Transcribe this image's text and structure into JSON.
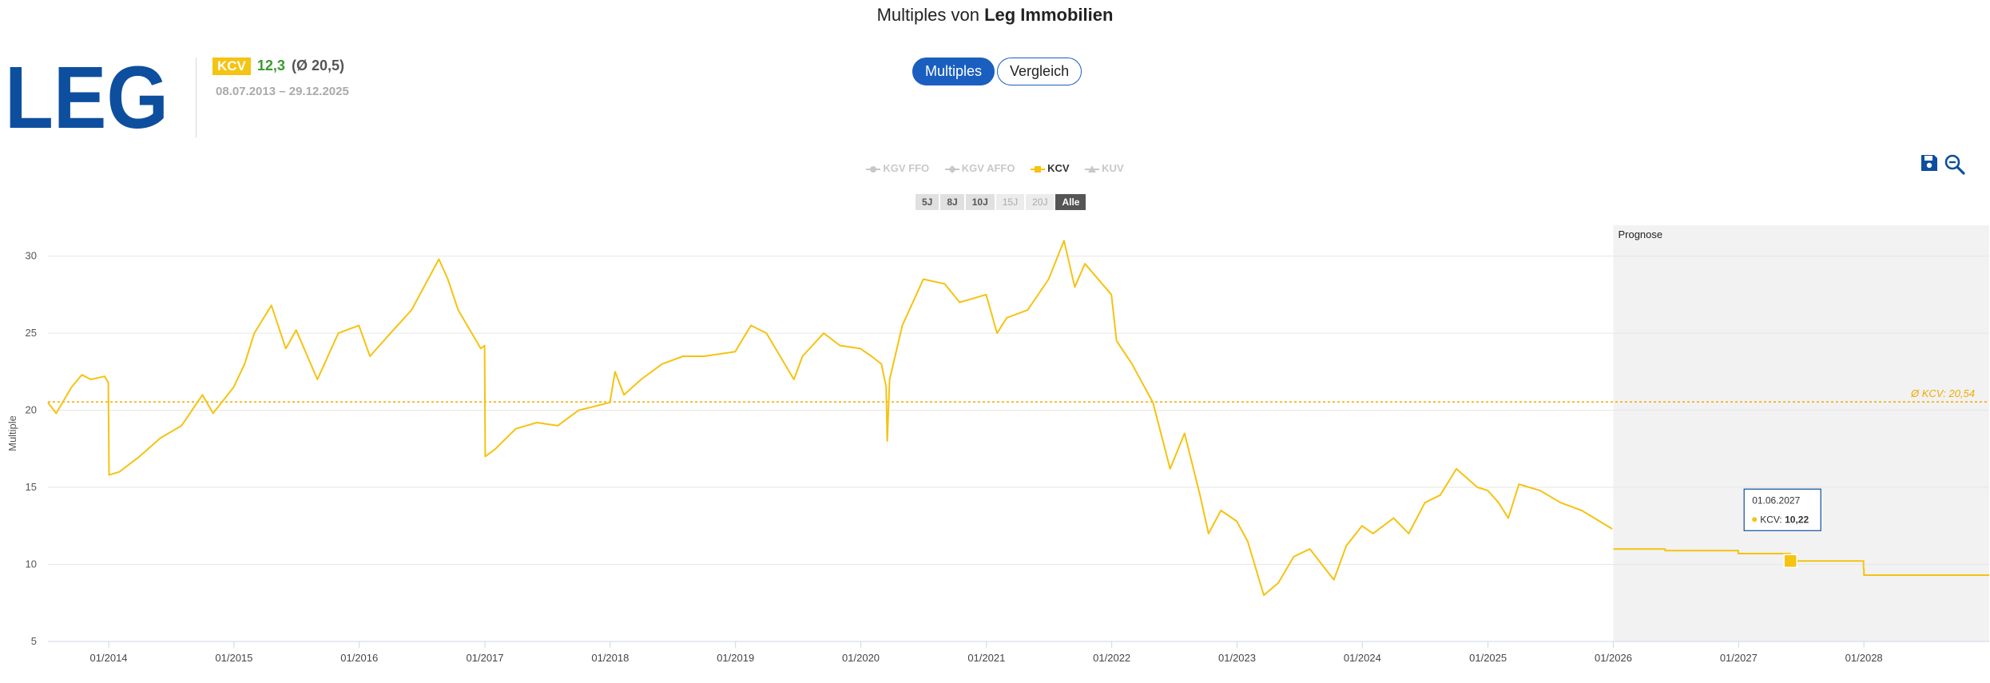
{
  "page": {
    "title_prefix": "Multiples von",
    "title_company": "Leg Immobilien"
  },
  "logo": {
    "text": "LEG"
  },
  "summary": {
    "metric_badge": "KCV",
    "current_value": "12,3",
    "average_text": "(Ø 20,5)",
    "date_range": "08.07.2013 – 29.12.2025"
  },
  "view_toggle": {
    "options": [
      "Multiples",
      "Vergleich"
    ],
    "active": "Multiples"
  },
  "legend": {
    "items": [
      {
        "label": "KGV FFO",
        "active": false,
        "marker": "circle"
      },
      {
        "label": "KGV AFFO",
        "active": false,
        "marker": "diamond"
      },
      {
        "label": "KCV",
        "active": true,
        "marker": "square"
      },
      {
        "label": "KUV",
        "active": false,
        "marker": "triangle"
      }
    ]
  },
  "range_buttons": {
    "items": [
      {
        "label": "5J",
        "state": "enabled"
      },
      {
        "label": "8J",
        "state": "enabled"
      },
      {
        "label": "10J",
        "state": "enabled"
      },
      {
        "label": "15J",
        "state": "disabled"
      },
      {
        "label": "20J",
        "state": "disabled"
      },
      {
        "label": "Alle",
        "state": "selected"
      }
    ]
  },
  "toolbar": {
    "icons": [
      "save-icon",
      "zoom-out-icon"
    ]
  },
  "tooltip": {
    "date": "01.06.2027",
    "series": "KCV",
    "value": "10,22"
  },
  "colors": {
    "series": "#f5c311",
    "accent": "#1a5fbf",
    "avg_line": "#f2a900",
    "forecast_bg": "#f2f2f2",
    "positive": "#3a9a2e"
  },
  "chart_data": {
    "type": "line",
    "ylabel": "Multiple",
    "ylim": [
      5,
      32
    ],
    "yticks": [
      5,
      10,
      15,
      20,
      25,
      30
    ],
    "x_range": [
      "2013-07-08",
      "2028-12-31"
    ],
    "x_ticks": [
      "01/2014",
      "01/2015",
      "01/2016",
      "01/2017",
      "01/2018",
      "01/2019",
      "01/2020",
      "01/2021",
      "01/2022",
      "01/2023",
      "01/2024",
      "01/2025",
      "01/2026",
      "01/2027",
      "01/2028"
    ],
    "forecast_band": {
      "start": "2026-01-01",
      "label": "Prognose"
    },
    "average_line": {
      "value": 20.54,
      "label": "Ø KCV: 20,54"
    },
    "series": [
      {
        "name": "KCV",
        "points": [
          [
            "2013-07-08",
            20.5
          ],
          [
            "2013-08-01",
            19.8
          ],
          [
            "2013-09-15",
            21.5
          ],
          [
            "2013-10-15",
            22.3
          ],
          [
            "2013-11-10",
            22.0
          ],
          [
            "2013-12-20",
            22.2
          ],
          [
            "2013-12-31",
            21.8
          ],
          [
            "2014-01-02",
            15.8
          ],
          [
            "2014-02-01",
            16.0
          ],
          [
            "2014-04-01",
            17.0
          ],
          [
            "2014-06-01",
            18.2
          ],
          [
            "2014-08-01",
            19.0
          ],
          [
            "2014-10-01",
            21.0
          ],
          [
            "2014-11-01",
            19.8
          ],
          [
            "2014-12-31",
            21.5
          ],
          [
            "2015-02-01",
            23.0
          ],
          [
            "2015-03-01",
            25.0
          ],
          [
            "2015-04-20",
            26.8
          ],
          [
            "2015-06-01",
            24.0
          ],
          [
            "2015-07-01",
            25.2
          ],
          [
            "2015-09-01",
            22.0
          ],
          [
            "2015-11-01",
            25.0
          ],
          [
            "2015-12-31",
            25.5
          ],
          [
            "2016-02-01",
            23.5
          ],
          [
            "2016-04-01",
            25.0
          ],
          [
            "2016-06-01",
            26.5
          ],
          [
            "2016-08-20",
            29.8
          ],
          [
            "2016-09-15",
            28.5
          ],
          [
            "2016-10-15",
            26.5
          ],
          [
            "2016-12-20",
            24.0
          ],
          [
            "2016-12-31",
            24.2
          ],
          [
            "2017-01-02",
            17.0
          ],
          [
            "2017-02-01",
            17.5
          ],
          [
            "2017-04-01",
            18.8
          ],
          [
            "2017-06-01",
            19.2
          ],
          [
            "2017-08-01",
            19.0
          ],
          [
            "2017-10-01",
            20.0
          ],
          [
            "2017-12-31",
            20.5
          ],
          [
            "2018-01-15",
            22.5
          ],
          [
            "2018-02-10",
            21.0
          ],
          [
            "2018-04-01",
            22.0
          ],
          [
            "2018-06-01",
            23.0
          ],
          [
            "2018-08-01",
            23.5
          ],
          [
            "2018-10-01",
            23.5
          ],
          [
            "2018-12-31",
            23.8
          ],
          [
            "2019-02-15",
            25.5
          ],
          [
            "2019-04-01",
            25.0
          ],
          [
            "2019-06-20",
            22.0
          ],
          [
            "2019-07-15",
            23.5
          ],
          [
            "2019-09-15",
            25.0
          ],
          [
            "2019-11-01",
            24.2
          ],
          [
            "2019-12-31",
            24.0
          ],
          [
            "2020-02-01",
            23.5
          ],
          [
            "2020-03-01",
            23.0
          ],
          [
            "2020-03-15",
            21.5
          ],
          [
            "2020-03-18",
            18.0
          ],
          [
            "2020-03-25",
            22.0
          ],
          [
            "2020-05-01",
            25.5
          ],
          [
            "2020-07-01",
            28.5
          ],
          [
            "2020-09-01",
            28.2
          ],
          [
            "2020-10-15",
            27.0
          ],
          [
            "2020-12-31",
            27.5
          ],
          [
            "2021-02-01",
            25.0
          ],
          [
            "2021-03-01",
            26.0
          ],
          [
            "2021-05-01",
            26.5
          ],
          [
            "2021-07-01",
            28.5
          ],
          [
            "2021-08-15",
            31.0
          ],
          [
            "2021-09-15",
            28.0
          ],
          [
            "2021-10-15",
            29.5
          ],
          [
            "2021-12-31",
            27.5
          ],
          [
            "2022-01-15",
            24.5
          ],
          [
            "2022-03-01",
            23.0
          ],
          [
            "2022-05-01",
            20.5
          ],
          [
            "2022-06-20",
            16.2
          ],
          [
            "2022-08-01",
            18.5
          ],
          [
            "2022-09-15",
            14.5
          ],
          [
            "2022-10-10",
            12.0
          ],
          [
            "2022-11-15",
            13.5
          ],
          [
            "2022-12-31",
            12.8
          ],
          [
            "2023-02-01",
            11.5
          ],
          [
            "2023-03-20",
            8.0
          ],
          [
            "2023-05-01",
            8.8
          ],
          [
            "2023-06-15",
            10.5
          ],
          [
            "2023-08-01",
            11.0
          ],
          [
            "2023-10-10",
            9.0
          ],
          [
            "2023-11-15",
            11.2
          ],
          [
            "2023-12-31",
            12.5
          ],
          [
            "2024-02-01",
            12.0
          ],
          [
            "2024-04-01",
            13.0
          ],
          [
            "2024-05-15",
            12.0
          ],
          [
            "2024-07-01",
            14.0
          ],
          [
            "2024-08-15",
            14.5
          ],
          [
            "2024-10-01",
            16.2
          ],
          [
            "2024-12-01",
            15.0
          ],
          [
            "2024-12-31",
            14.8
          ],
          [
            "2025-02-01",
            14.0
          ],
          [
            "2025-03-01",
            13.0
          ],
          [
            "2025-04-01",
            15.2
          ],
          [
            "2025-06-01",
            14.8
          ],
          [
            "2025-08-01",
            14.0
          ],
          [
            "2025-10-01",
            13.5
          ],
          [
            "2025-12-29",
            12.3
          ]
        ]
      },
      {
        "name": "KCV",
        "points": [
          [
            "2026-01-01",
            11.0
          ],
          [
            "2026-06-01",
            10.9
          ],
          [
            "2026-12-31",
            10.7
          ],
          [
            "2027-06-01",
            10.22
          ],
          [
            "2027-12-31",
            9.7
          ],
          [
            "2028-01-01",
            9.3
          ],
          [
            "2028-12-31",
            9.3
          ]
        ]
      }
    ]
  }
}
